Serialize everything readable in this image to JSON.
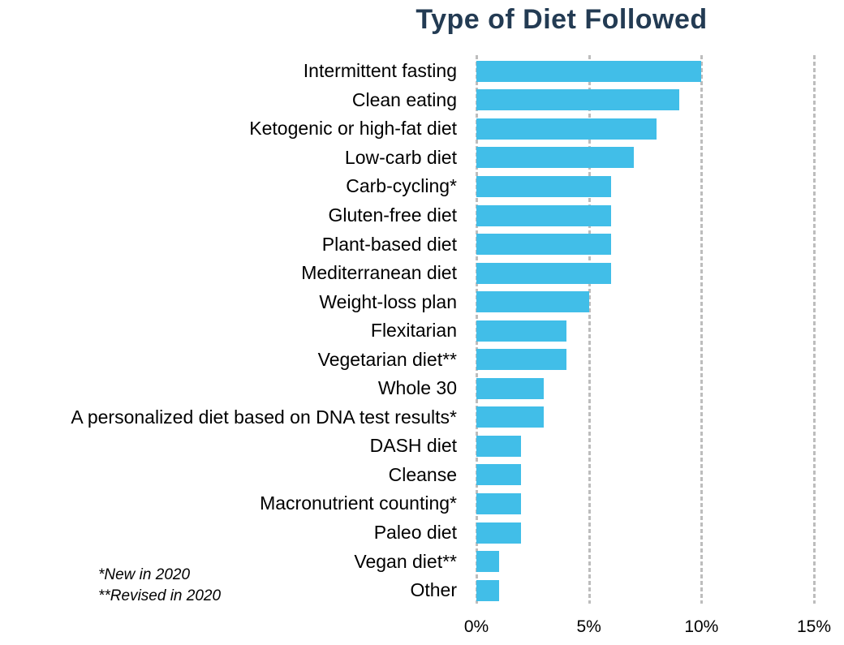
{
  "title": "Type of Diet Followed",
  "footnotes": [
    "*New in 2020",
    "**Revised in 2020"
  ],
  "colors": {
    "bar": "#41BEE8",
    "gridline": "#BDBDBD",
    "title": "#233B53",
    "text": "#000000"
  },
  "chart_data": {
    "type": "bar",
    "orientation": "horizontal",
    "title": "Type of Diet Followed",
    "categories": [
      "Intermittent fasting",
      "Clean eating",
      "Ketogenic or high-fat diet",
      "Low-carb diet",
      "Carb-cycling*",
      "Gluten-free diet",
      "Plant-based diet",
      "Mediterranean diet",
      "Weight-loss plan",
      "Flexitarian",
      "Vegetarian diet**",
      "Whole 30",
      "A personalized diet based on DNA test results*",
      "DASH diet",
      "Cleanse",
      "Macronutrient counting*",
      "Paleo diet",
      "Vegan diet**",
      "Other"
    ],
    "values": [
      10,
      9,
      8,
      7,
      6,
      6,
      6,
      6,
      5,
      4,
      4,
      3,
      3,
      2,
      2,
      2,
      2,
      1,
      1
    ],
    "unit": "%",
    "xlabel": "",
    "ylabel": "",
    "xlim": [
      0,
      15
    ],
    "xticks": [
      {
        "value": 0,
        "label": "0%"
      },
      {
        "value": 5,
        "label": "5%"
      },
      {
        "value": 10,
        "label": "10%"
      },
      {
        "value": 15,
        "label": "15%"
      }
    ],
    "grid": "vertical-dashed",
    "legend": "none",
    "footnotes": [
      "*New in 2020",
      "**Revised in 2020"
    ]
  }
}
